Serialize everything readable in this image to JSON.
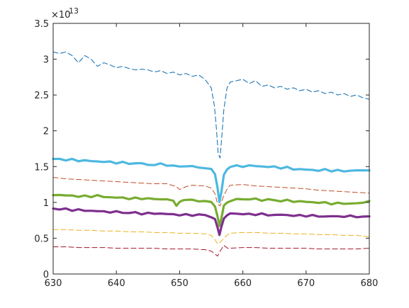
{
  "chart_data": {
    "type": "line",
    "title": "",
    "xlabel": "",
    "ylabel": "",
    "xlim": [
      630,
      680
    ],
    "ylim": [
      0,
      3.5
    ],
    "y_exponent_label": "×10",
    "y_exponent_power": "-13",
    "x_ticks": [
      630,
      640,
      650,
      660,
      670,
      680
    ],
    "x_tick_labels": [
      "630",
      "640",
      "650",
      "660",
      "670",
      "680"
    ],
    "y_ticks": [
      0,
      0.5,
      1,
      1.5,
      2,
      2.5,
      3,
      3.5
    ],
    "y_tick_labels": [
      "0",
      "0.5",
      "1",
      "1.5",
      "2",
      "2.5",
      "3",
      "3.5"
    ],
    "grid": false,
    "series": [
      {
        "color": "#1f77b4",
        "style": "dashed",
        "width": 1.1,
        "x": [
          630,
          631,
          632,
          633,
          634,
          635,
          636,
          637,
          638,
          639,
          640,
          641,
          642,
          643,
          644,
          645,
          646,
          647,
          648,
          649,
          650,
          651,
          652,
          653,
          654,
          655,
          655.5,
          655.8,
          656.1,
          656.4,
          656.7,
          657,
          657.5,
          658,
          659,
          660,
          661,
          662,
          663,
          664,
          665,
          666,
          667,
          668,
          669,
          670,
          671,
          672,
          673,
          674,
          675,
          676,
          677,
          678,
          679,
          680
        ],
        "values": [
          3.1,
          3.08,
          3.1,
          3.05,
          2.95,
          3.05,
          3.0,
          2.9,
          2.95,
          2.92,
          2.88,
          2.9,
          2.87,
          2.85,
          2.86,
          2.85,
          2.82,
          2.84,
          2.8,
          2.82,
          2.78,
          2.8,
          2.76,
          2.78,
          2.72,
          2.6,
          2.35,
          2.05,
          1.68,
          1.62,
          1.95,
          2.3,
          2.6,
          2.68,
          2.7,
          2.72,
          2.66,
          2.7,
          2.62,
          2.64,
          2.6,
          2.62,
          2.58,
          2.6,
          2.56,
          2.58,
          2.54,
          2.56,
          2.52,
          2.54,
          2.5,
          2.52,
          2.48,
          2.5,
          2.46,
          2.44
        ]
      },
      {
        "color": "#4db8e0",
        "style": "solid",
        "width": 3.2,
        "x": [
          630,
          631,
          632,
          633,
          634,
          635,
          636,
          637,
          638,
          639,
          640,
          641,
          642,
          643,
          644,
          645,
          646,
          647,
          648,
          649,
          650,
          651,
          652,
          653,
          654,
          655,
          655.6,
          656,
          656.3,
          656.6,
          657,
          657.5,
          658,
          659,
          660,
          661,
          662,
          663,
          664,
          665,
          666,
          667,
          668,
          669,
          670,
          671,
          672,
          673,
          674,
          675,
          676,
          677,
          678,
          679,
          680
        ],
        "values": [
          1.6,
          1.61,
          1.59,
          1.6,
          1.58,
          1.59,
          1.57,
          1.58,
          1.56,
          1.57,
          1.55,
          1.56,
          1.54,
          1.55,
          1.54,
          1.53,
          1.52,
          1.54,
          1.52,
          1.51,
          1.5,
          1.51,
          1.5,
          1.49,
          1.48,
          1.46,
          1.4,
          1.2,
          1.0,
          1.15,
          1.38,
          1.46,
          1.5,
          1.51,
          1.5,
          1.52,
          1.5,
          1.51,
          1.49,
          1.5,
          1.48,
          1.49,
          1.46,
          1.47,
          1.45,
          1.46,
          1.44,
          1.46,
          1.44,
          1.45,
          1.43,
          1.45,
          1.44,
          1.45,
          1.45
        ]
      },
      {
        "color": "#c0502a",
        "style": "dashed",
        "width": 1.0,
        "x": [
          630,
          632,
          634,
          636,
          638,
          640,
          642,
          644,
          646,
          648,
          649.5,
          650,
          651,
          652,
          654,
          655,
          655.6,
          656,
          656.4,
          657,
          657.6,
          658,
          660,
          662,
          664,
          666,
          668,
          670,
          672,
          674,
          676,
          678,
          680
        ],
        "values": [
          1.35,
          1.33,
          1.32,
          1.31,
          1.3,
          1.29,
          1.28,
          1.27,
          1.26,
          1.26,
          1.22,
          1.18,
          1.22,
          1.24,
          1.23,
          1.2,
          1.12,
          0.98,
          0.95,
          1.1,
          1.2,
          1.24,
          1.25,
          1.23,
          1.22,
          1.21,
          1.2,
          1.19,
          1.17,
          1.16,
          1.15,
          1.14,
          1.13
        ]
      },
      {
        "color": "#77ac30",
        "style": "solid",
        "width": 3.2,
        "x": [
          630,
          631,
          632,
          633,
          634,
          635,
          636,
          637,
          638,
          639,
          640,
          641,
          642,
          643,
          644,
          645,
          646,
          647,
          648,
          649,
          649.5,
          650,
          650.5,
          651,
          652,
          653,
          654,
          655,
          655.6,
          656,
          656.3,
          656.6,
          657,
          657.5,
          658,
          659,
          660,
          661,
          662,
          663,
          664,
          665,
          666,
          667,
          668,
          669,
          670,
          671,
          672,
          673,
          674,
          675,
          676,
          677,
          678,
          679,
          680
        ],
        "values": [
          1.1,
          1.11,
          1.09,
          1.1,
          1.08,
          1.09,
          1.08,
          1.1,
          1.07,
          1.08,
          1.06,
          1.07,
          1.05,
          1.06,
          1.05,
          1.06,
          1.04,
          1.05,
          1.04,
          1.02,
          0.96,
          1.0,
          1.03,
          1.04,
          1.03,
          1.02,
          1.02,
          1.0,
          0.95,
          0.8,
          0.67,
          0.78,
          0.95,
          1.0,
          1.02,
          1.04,
          1.05,
          1.04,
          1.05,
          1.03,
          1.04,
          1.03,
          1.02,
          1.03,
          1.01,
          1.02,
          1.0,
          1.01,
          0.99,
          1.0,
          0.98,
          0.99,
          0.98,
          0.99,
          0.98,
          1.0,
          1.02
        ]
      },
      {
        "color": "#7e2f8e",
        "style": "solid",
        "width": 3.2,
        "x": [
          630,
          631,
          632,
          633,
          634,
          635,
          636,
          637,
          638,
          639,
          640,
          641,
          642,
          643,
          644,
          645,
          646,
          647,
          648,
          649,
          650,
          651,
          652,
          653,
          654,
          655,
          655.6,
          656,
          656.3,
          656.6,
          657,
          657.5,
          658,
          659,
          660,
          661,
          662,
          663,
          664,
          665,
          666,
          667,
          668,
          669,
          670,
          671,
          672,
          673,
          674,
          675,
          676,
          677,
          678,
          679,
          680
        ],
        "values": [
          0.92,
          0.9,
          0.91,
          0.89,
          0.9,
          0.88,
          0.89,
          0.87,
          0.88,
          0.86,
          0.87,
          0.86,
          0.85,
          0.86,
          0.84,
          0.85,
          0.84,
          0.85,
          0.83,
          0.84,
          0.82,
          0.83,
          0.82,
          0.83,
          0.82,
          0.8,
          0.76,
          0.65,
          0.55,
          0.65,
          0.78,
          0.82,
          0.84,
          0.85,
          0.83,
          0.84,
          0.83,
          0.84,
          0.82,
          0.83,
          0.82,
          0.83,
          0.81,
          0.82,
          0.81,
          0.82,
          0.8,
          0.81,
          0.8,
          0.81,
          0.8,
          0.81,
          0.8,
          0.8,
          0.8
        ]
      },
      {
        "color": "#edb120",
        "style": "dashed",
        "width": 1.0,
        "x": [
          630,
          632,
          634,
          636,
          638,
          640,
          642,
          644,
          646,
          648,
          650,
          652,
          654,
          655,
          655.6,
          656,
          656.4,
          657,
          657.6,
          658,
          660,
          662,
          664,
          666,
          668,
          670,
          672,
          674,
          676,
          678,
          680
        ],
        "values": [
          0.62,
          0.62,
          0.61,
          0.61,
          0.6,
          0.6,
          0.59,
          0.59,
          0.58,
          0.58,
          0.57,
          0.57,
          0.56,
          0.54,
          0.48,
          0.42,
          0.44,
          0.5,
          0.55,
          0.57,
          0.58,
          0.58,
          0.57,
          0.57,
          0.56,
          0.56,
          0.55,
          0.55,
          0.54,
          0.54,
          0.52
        ]
      },
      {
        "color": "#a2142f",
        "style": "dashed",
        "width": 1.0,
        "x": [
          630,
          632,
          634,
          636,
          638,
          640,
          642,
          644,
          646,
          648,
          650,
          652,
          654,
          655,
          655.6,
          656,
          656.4,
          657,
          657.6,
          658,
          660,
          662,
          664,
          666,
          668,
          670,
          672,
          674,
          676,
          678,
          680
        ],
        "values": [
          0.38,
          0.38,
          0.37,
          0.37,
          0.37,
          0.36,
          0.36,
          0.36,
          0.36,
          0.35,
          0.35,
          0.35,
          0.34,
          0.32,
          0.28,
          0.25,
          0.32,
          0.4,
          0.36,
          0.36,
          0.37,
          0.37,
          0.36,
          0.36,
          0.36,
          0.36,
          0.35,
          0.35,
          0.35,
          0.35,
          0.36
        ]
      }
    ]
  }
}
